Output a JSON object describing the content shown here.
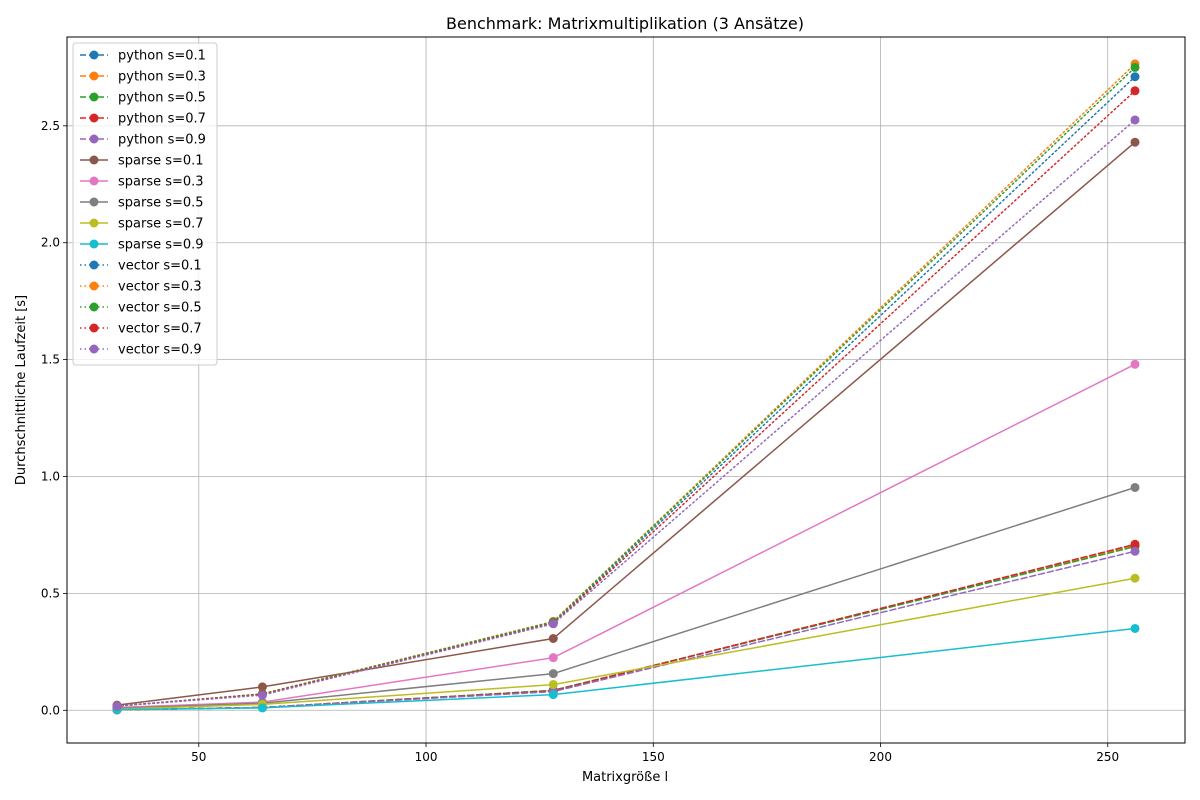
{
  "chart_data": {
    "type": "line",
    "title": "Benchmark: Matrixmultiplikation (3 Ansätze)",
    "xlabel": "Matrixgröße l",
    "ylabel": "Durchschnittliche Laufzeit [s]",
    "xlim": [
      21,
      267
    ],
    "ylim": [
      -0.14,
      2.88
    ],
    "x_ticks": [
      50,
      100,
      150,
      200,
      250
    ],
    "y_ticks": [
      0.0,
      0.5,
      1.0,
      1.5,
      2.0,
      2.5
    ],
    "x_tick_labels": [
      "50",
      "100",
      "150",
      "200",
      "250"
    ],
    "y_tick_labels": [
      "0.0",
      "0.5",
      "1.0",
      "1.5",
      "2.0",
      "2.5"
    ],
    "grid": true,
    "legend_position": "top-left",
    "x": [
      32,
      64,
      128,
      256
    ],
    "series": [
      {
        "name": "python s=0.1",
        "color": "#1f77b4",
        "style": "dashed",
        "values": [
          0.002,
          0.012,
          0.085,
          0.705
        ]
      },
      {
        "name": "python s=0.3",
        "color": "#ff7f0e",
        "style": "dashed",
        "values": [
          0.002,
          0.012,
          0.085,
          0.705
        ]
      },
      {
        "name": "python s=0.5",
        "color": "#2ca02c",
        "style": "dashed",
        "values": [
          0.002,
          0.012,
          0.085,
          0.7
        ]
      },
      {
        "name": "python s=0.7",
        "color": "#d62728",
        "style": "dashed",
        "values": [
          0.002,
          0.012,
          0.083,
          0.71
        ]
      },
      {
        "name": "python s=0.9",
        "color": "#9467bd",
        "style": "dashed",
        "values": [
          0.002,
          0.012,
          0.08,
          0.68
        ]
      },
      {
        "name": "sparse s=0.1",
        "color": "#8c564b",
        "style": "solid",
        "values": [
          0.022,
          0.1,
          0.307,
          2.43
        ]
      },
      {
        "name": "sparse s=0.3",
        "color": "#e377c2",
        "style": "solid",
        "values": [
          0.012,
          0.035,
          0.225,
          1.48
        ]
      },
      {
        "name": "sparse s=0.5",
        "color": "#7f7f7f",
        "style": "solid",
        "values": [
          0.008,
          0.03,
          0.157,
          0.953
        ]
      },
      {
        "name": "sparse s=0.7",
        "color": "#bcbd22",
        "style": "solid",
        "values": [
          0.005,
          0.025,
          0.11,
          0.565
        ]
      },
      {
        "name": "sparse s=0.9",
        "color": "#17becf",
        "style": "solid",
        "values": [
          0.003,
          0.01,
          0.067,
          0.35
        ]
      },
      {
        "name": "vector s=0.1",
        "color": "#1f77b4",
        "style": "dotted",
        "values": [
          0.018,
          0.07,
          0.375,
          2.71
        ]
      },
      {
        "name": "vector s=0.3",
        "color": "#ff7f0e",
        "style": "dotted",
        "values": [
          0.018,
          0.07,
          0.38,
          2.765
        ]
      },
      {
        "name": "vector s=0.5",
        "color": "#2ca02c",
        "style": "dotted",
        "values": [
          0.018,
          0.07,
          0.378,
          2.75
        ]
      },
      {
        "name": "vector s=0.7",
        "color": "#d62728",
        "style": "dotted",
        "values": [
          0.018,
          0.068,
          0.372,
          2.65
        ]
      },
      {
        "name": "vector s=0.9",
        "color": "#9467bd",
        "style": "dotted",
        "values": [
          0.018,
          0.065,
          0.37,
          2.525
        ]
      }
    ]
  }
}
